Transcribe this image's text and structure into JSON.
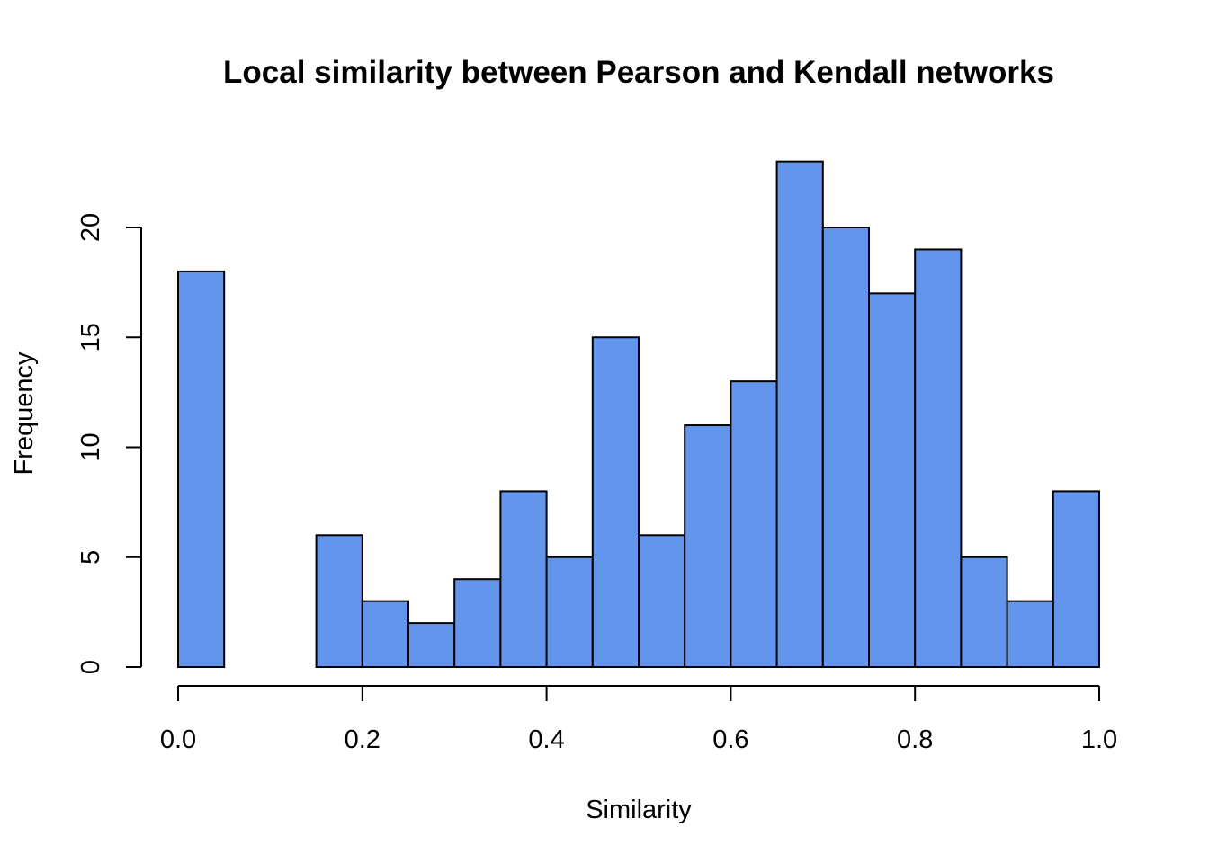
{
  "chart_data": {
    "type": "bar",
    "histogram": true,
    "title": "Local similarity between Pearson and Kendall networks",
    "xlabel": "Similarity",
    "ylabel": "Frequency",
    "bin_edges": [
      0.0,
      0.05,
      0.1,
      0.15,
      0.2,
      0.25,
      0.3,
      0.35,
      0.4,
      0.45,
      0.5,
      0.55,
      0.6,
      0.65,
      0.7,
      0.75,
      0.8,
      0.85,
      0.9,
      0.95,
      1.0
    ],
    "values": [
      18,
      0,
      0,
      6,
      3,
      2,
      4,
      8,
      5,
      15,
      6,
      11,
      13,
      23,
      20,
      17,
      19,
      5,
      3,
      8
    ],
    "xlim": [
      0.0,
      1.0
    ],
    "ylim": [
      0,
      23
    ],
    "x_ticks": [
      {
        "value": 0.0,
        "label": "0.0"
      },
      {
        "value": 0.2,
        "label": "0.2"
      },
      {
        "value": 0.4,
        "label": "0.4"
      },
      {
        "value": 0.6,
        "label": "0.6"
      },
      {
        "value": 0.8,
        "label": "0.8"
      },
      {
        "value": 1.0,
        "label": "1.0"
      }
    ],
    "y_ticks": [
      {
        "value": 0,
        "label": "0"
      },
      {
        "value": 5,
        "label": "5"
      },
      {
        "value": 10,
        "label": "10"
      },
      {
        "value": 15,
        "label": "15"
      },
      {
        "value": 20,
        "label": "20"
      }
    ],
    "bar_color": "#6495ED",
    "border_color": "#000000",
    "grid": false,
    "legend": "none"
  }
}
